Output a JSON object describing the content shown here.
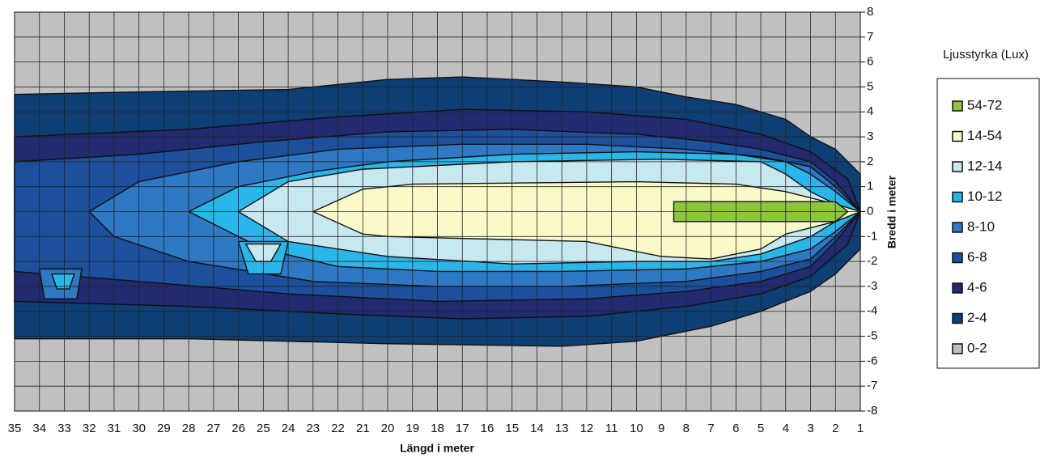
{
  "chart_data": {
    "type": "contour",
    "x_label": "Längd i meter",
    "y_label": "Bredd i meter",
    "legend_title": "Ljusstyrka (Lux)",
    "xlim": [
      35,
      1
    ],
    "xticks": [
      35,
      34,
      33,
      32,
      31,
      30,
      29,
      28,
      27,
      26,
      25,
      24,
      23,
      22,
      21,
      20,
      19,
      18,
      17,
      16,
      15,
      14,
      13,
      12,
      11,
      10,
      9,
      8,
      7,
      6,
      5,
      4,
      3,
      2,
      1
    ],
    "ylim": [
      -8,
      8
    ],
    "yticks": [
      -8,
      -7,
      -6,
      -5,
      -4,
      -3,
      -2,
      -1,
      0,
      1,
      2,
      3,
      4,
      5,
      6,
      7,
      8
    ],
    "grid": true,
    "legend_position": "right",
    "series": [
      {
        "name": "54-72",
        "color": "#8cc63f",
        "regions": [
          [
            [
              8.5,
              0.4
            ],
            [
              2,
              0.4
            ],
            [
              1.5,
              0
            ],
            [
              2,
              -0.4
            ],
            [
              8.5,
              -0.4
            ]
          ]
        ]
      },
      {
        "name": "14-54",
        "color": "#fafac8",
        "regions": [
          [
            [
              23,
              0
            ],
            [
              21,
              0.9
            ],
            [
              19,
              1.1
            ],
            [
              10,
              1.2
            ],
            [
              6,
              1.1
            ],
            [
              4,
              0.8
            ],
            [
              2,
              0.3
            ],
            [
              1,
              0
            ],
            [
              2,
              -0.4
            ],
            [
              4,
              -0.9
            ],
            [
              5,
              -1.5
            ],
            [
              7,
              -1.9
            ],
            [
              9,
              -1.8
            ],
            [
              12,
              -1.2
            ],
            [
              20,
              -1.0
            ],
            [
              21,
              -0.9
            ]
          ]
        ]
      },
      {
        "name": "12-14",
        "color": "#c8e8f0",
        "regions": [
          [
            [
              26,
              0
            ],
            [
              24,
              1.2
            ],
            [
              21,
              1.7
            ],
            [
              15,
              2.0
            ],
            [
              9,
              2.1
            ],
            [
              5,
              2.0
            ],
            [
              4,
              1.5
            ],
            [
              3,
              0.8
            ],
            [
              2,
              0.3
            ],
            [
              1,
              0
            ],
            [
              2,
              -0.4
            ],
            [
              3,
              -1.0
            ],
            [
              5,
              -1.7
            ],
            [
              7,
              -2.0
            ],
            [
              10,
              -2.0
            ],
            [
              15,
              -2.1
            ],
            [
              20,
              -1.8
            ],
            [
              24,
              -1.2
            ]
          ],
          [
            [
              25.7,
              -1.3
            ],
            [
              24.3,
              -1.3
            ],
            [
              24.7,
              -2.0
            ],
            [
              25.3,
              -2.0
            ]
          ]
        ]
      },
      {
        "name": "10-12",
        "color": "#29b6e8",
        "regions": [
          [
            [
              28,
              0
            ],
            [
              26,
              1.0
            ],
            [
              23,
              1.6
            ],
            [
              20,
              2.0
            ],
            [
              15,
              2.3
            ],
            [
              10,
              2.4
            ],
            [
              6,
              2.3
            ],
            [
              4,
              2.0
            ],
            [
              3,
              1.5
            ],
            [
              2,
              0.8
            ],
            [
              1,
              0
            ],
            [
              2,
              -0.8
            ],
            [
              3,
              -1.5
            ],
            [
              5,
              -2.0
            ],
            [
              8,
              -2.3
            ],
            [
              13,
              -2.4
            ],
            [
              18,
              -2.4
            ],
            [
              22,
              -2.2
            ],
            [
              25,
              -1.5
            ]
          ],
          [
            [
              26,
              -1.2
            ],
            [
              24,
              -1.2
            ],
            [
              24.3,
              -2.5
            ],
            [
              25.6,
              -2.5
            ]
          ],
          [
            [
              33.5,
              -2.5
            ],
            [
              32.6,
              -2.5
            ],
            [
              32.8,
              -3.1
            ],
            [
              33.3,
              -3.1
            ]
          ]
        ]
      },
      {
        "name": "8-10",
        "color": "#2f78c4",
        "regions": [
          [
            [
              32,
              0
            ],
            [
              30,
              1.2
            ],
            [
              26,
              2.0
            ],
            [
              22,
              2.5
            ],
            [
              17,
              2.7
            ],
            [
              12,
              2.7
            ],
            [
              8,
              2.5
            ],
            [
              5,
              2.2
            ],
            [
              3,
              1.8
            ],
            [
              2,
              1.0
            ],
            [
              1,
              0
            ],
            [
              2,
              -1.0
            ],
            [
              3,
              -1.9
            ],
            [
              5,
              -2.4
            ],
            [
              8,
              -2.8
            ],
            [
              13,
              -3.0
            ],
            [
              18,
              -3.0
            ],
            [
              23,
              -2.8
            ],
            [
              28,
              -2.0
            ],
            [
              31,
              -1.0
            ]
          ],
          [
            [
              34,
              -2.3
            ],
            [
              32.3,
              -2.3
            ],
            [
              32.5,
              -3.5
            ],
            [
              33.8,
              -3.5
            ]
          ]
        ]
      },
      {
        "name": "6-8",
        "color": "#1c4f9c",
        "regions": [
          [
            [
              35,
              2.0
            ],
            [
              30,
              2.3
            ],
            [
              25,
              2.8
            ],
            [
              20,
              3.2
            ],
            [
              15,
              3.3
            ],
            [
              10,
              3.1
            ],
            [
              7,
              2.8
            ],
            [
              5,
              2.5
            ],
            [
              3,
              2.0
            ],
            [
              2,
              1.2
            ],
            [
              1,
              0
            ],
            [
              2,
              -1.2
            ],
            [
              3,
              -2.2
            ],
            [
              5,
              -2.8
            ],
            [
              8,
              -3.2
            ],
            [
              12,
              -3.5
            ],
            [
              18,
              -3.6
            ],
            [
              24,
              -3.3
            ],
            [
              30,
              -2.8
            ],
            [
              35,
              -2.4
            ]
          ]
        ]
      },
      {
        "name": "4-6",
        "color": "#222a72",
        "regions": [
          [
            [
              35,
              3.0
            ],
            [
              28,
              3.3
            ],
            [
              22,
              3.8
            ],
            [
              17,
              4.1
            ],
            [
              12,
              4.0
            ],
            [
              8,
              3.7
            ],
            [
              5,
              3.1
            ],
            [
              3,
              2.4
            ],
            [
              1.5,
              1.3
            ],
            [
              1,
              0
            ],
            [
              1.5,
              -1.3
            ],
            [
              3,
              -2.6
            ],
            [
              5,
              -3.3
            ],
            [
              8,
              -3.8
            ],
            [
              12,
              -4.2
            ],
            [
              17,
              -4.3
            ],
            [
              22,
              -4.1
            ],
            [
              28,
              -3.8
            ],
            [
              35,
              -3.6
            ]
          ]
        ]
      },
      {
        "name": "2-4",
        "color": "#0d3e74",
        "regions": [
          [
            [
              35,
              4.7
            ],
            [
              30,
              4.8
            ],
            [
              24,
              4.9
            ],
            [
              20,
              5.3
            ],
            [
              17,
              5.4
            ],
            [
              13,
              5.2
            ],
            [
              10,
              5.0
            ],
            [
              8,
              4.6
            ],
            [
              6,
              4.3
            ],
            [
              4,
              3.7
            ],
            [
              3,
              3.0
            ],
            [
              2,
              2.5
            ],
            [
              1,
              1.5
            ],
            [
              1,
              -1.5
            ],
            [
              2,
              -2.5
            ],
            [
              3,
              -3.2
            ],
            [
              5,
              -4
            ],
            [
              7,
              -4.6
            ],
            [
              10,
              -5.2
            ],
            [
              13,
              -5.4
            ],
            [
              20,
              -5.3
            ],
            [
              28,
              -5.1
            ],
            [
              35,
              -5.1
            ]
          ]
        ]
      },
      {
        "name": "0-2",
        "color": "#c0c0c0",
        "regions": []
      }
    ]
  }
}
